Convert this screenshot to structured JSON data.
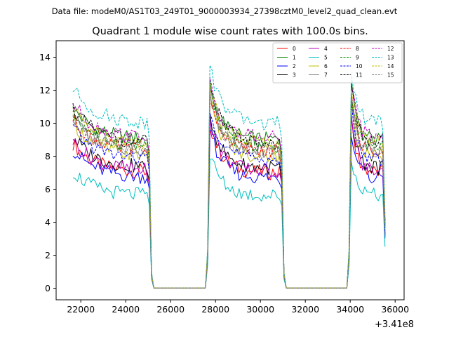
{
  "chart_data": {
    "type": "line",
    "suptitle": "Data file: modeM0/AS1T03_249T01_9000003934_27398cztM0_level2_quad_clean.evt",
    "title": "Quadrant 1 module wise count rates with 100.0s bins.",
    "xlabel": "",
    "ylabel": "",
    "x_offset_label": "+3.41e8",
    "xlim": [
      20900,
      36400
    ],
    "ylim": [
      -0.7,
      15.0
    ],
    "x_ticks": [
      22000,
      24000,
      26000,
      28000,
      30000,
      32000,
      34000,
      36000
    ],
    "x_tick_labels": [
      "22000",
      "24000",
      "26000",
      "28000",
      "30000",
      "32000",
      "34000",
      "36000"
    ],
    "y_ticks": [
      0,
      2,
      4,
      6,
      8,
      10,
      12,
      14
    ],
    "y_tick_labels": [
      "0",
      "2",
      "4",
      "6",
      "8",
      "10",
      "12",
      "14"
    ],
    "legend_location": "upper right",
    "x_bin_width": 100,
    "segments": [
      {
        "start": 21650,
        "end": 25050
      },
      {
        "start": 27750,
        "end": 30950
      },
      {
        "start": 34050,
        "end": 35550
      }
    ],
    "series": [
      {
        "name": "0",
        "color": "#ff0000",
        "dash": "solid",
        "level": 7.0,
        "peak": 10.0
      },
      {
        "name": "1",
        "color": "#008000",
        "dash": "solid",
        "level": 9.0,
        "peak": 12.3
      },
      {
        "name": "2",
        "color": "#0000ff",
        "dash": "solid",
        "level": 6.7,
        "peak": 9.6
      },
      {
        "name": "3",
        "color": "#000000",
        "dash": "solid",
        "level": 7.3,
        "peak": 10.5
      },
      {
        "name": "4",
        "color": "#bf00bf",
        "dash": "solid",
        "level": 7.1,
        "peak": 10.2
      },
      {
        "name": "5",
        "color": "#00bfbf",
        "dash": "solid",
        "level": 5.6,
        "peak": 8.1
      },
      {
        "name": "6",
        "color": "#bfbf00",
        "dash": "solid",
        "level": 8.0,
        "peak": 11.5
      },
      {
        "name": "7",
        "color": "#808080",
        "dash": "solid",
        "level": 8.3,
        "peak": 11.9
      },
      {
        "name": "8",
        "color": "#ff0000",
        "dash": "dashed",
        "level": 8.3,
        "peak": 11.6
      },
      {
        "name": "9",
        "color": "#008000",
        "dash": "dashed",
        "level": 8.6,
        "peak": 12.0
      },
      {
        "name": "10",
        "color": "#0000ff",
        "dash": "dashed",
        "level": 7.8,
        "peak": 11.0
      },
      {
        "name": "11",
        "color": "#000000",
        "dash": "dashed",
        "level": 8.8,
        "peak": 12.4
      },
      {
        "name": "12",
        "color": "#bf00bf",
        "dash": "dashed",
        "level": 9.1,
        "peak": 12.6
      },
      {
        "name": "13",
        "color": "#00bfbf",
        "dash": "dashed",
        "level": 10.0,
        "peak": 13.5
      },
      {
        "name": "14",
        "color": "#bfbf00",
        "dash": "dashed",
        "level": 8.8,
        "peak": 12.3
      },
      {
        "name": "15",
        "color": "#808080",
        "dash": "dashed",
        "level": 8.2,
        "peak": 11.8
      }
    ]
  }
}
